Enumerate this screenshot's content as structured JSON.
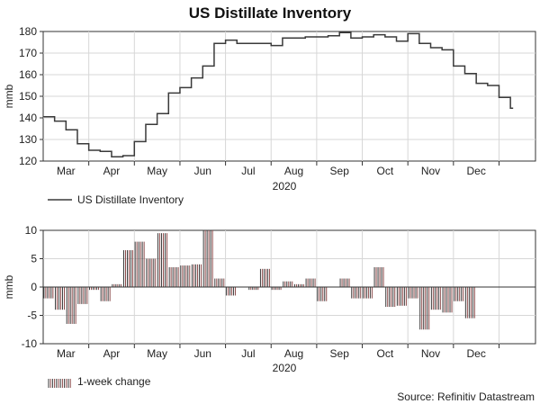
{
  "title": "US Distillate Inventory",
  "source": "Source: Refinitiv Datastream",
  "colors": {
    "line": "#3a3a3a",
    "bar_dark": "#3a3a3a",
    "bar_red": "#8c4a4a",
    "grid": "#d7d7d7",
    "axis": "#333333"
  },
  "chart_data": [
    {
      "type": "line",
      "title": "US Distillate Inventory",
      "ylabel": "mmb",
      "xlabel": "2020",
      "ylim": [
        120,
        180
      ],
      "yticks": [
        120,
        130,
        140,
        150,
        160,
        170,
        180
      ],
      "xlim": [
        0,
        10.8
      ],
      "months": [
        "Mar",
        "Apr",
        "May",
        "Jun",
        "Jul",
        "Aug",
        "Sep",
        "Oct",
        "Nov",
        "Dec"
      ],
      "year_label": "2020",
      "legend": "US Distillate Inventory",
      "series": [
        {
          "name": "US Distillate Inventory",
          "x": [
            0.0,
            0.25,
            0.5,
            0.75,
            1.0,
            1.25,
            1.5,
            1.75,
            2.0,
            2.25,
            2.5,
            2.75,
            3.0,
            3.25,
            3.5,
            3.75,
            4.0,
            4.25,
            4.5,
            4.75,
            5.0,
            5.25,
            5.5,
            5.75,
            6.0,
            6.25,
            6.5,
            6.75,
            7.0,
            7.25,
            7.5,
            7.75,
            8.0,
            8.25,
            8.5,
            8.75,
            9.0,
            9.25,
            9.5,
            9.75,
            10.0,
            10.25
          ],
          "values": [
            140.5,
            138.5,
            134.5,
            128,
            125,
            124.5,
            122,
            122.5,
            129,
            137,
            142,
            151.5,
            154,
            158.5,
            164,
            174.5,
            176,
            174.5,
            174.5,
            174.5,
            173.5,
            177,
            177,
            177.5,
            177.5,
            178,
            179.5,
            177,
            177.5,
            178.5,
            177.5,
            175.5,
            179,
            174.5,
            172.5,
            171.5,
            164,
            160.5,
            156,
            155,
            149.5,
            144.5
          ]
        }
      ]
    },
    {
      "type": "bar",
      "ylabel": "mmb",
      "xlabel": "2020",
      "ylim": [
        -10,
        10
      ],
      "yticks": [
        -10,
        -5,
        0,
        5,
        10
      ],
      "xlim": [
        0,
        10.8
      ],
      "months": [
        "Mar",
        "Apr",
        "May",
        "Jun",
        "Jul",
        "Aug",
        "Sep",
        "Oct",
        "Nov",
        "Dec"
      ],
      "year_label": "2020",
      "legend": "1-week change",
      "bar_width": 0.24,
      "series": [
        {
          "name": "1-week change",
          "x": [
            0.125,
            0.375,
            0.625,
            0.875,
            1.125,
            1.375,
            1.625,
            1.875,
            2.125,
            2.375,
            2.625,
            2.875,
            3.125,
            3.375,
            3.625,
            3.875,
            4.125,
            4.375,
            4.625,
            4.875,
            5.125,
            5.375,
            5.625,
            5.875,
            6.125,
            6.375,
            6.625,
            6.875,
            7.125,
            7.375,
            7.625,
            7.875,
            8.125,
            8.375,
            8.625,
            8.875,
            9.125,
            9.375,
            9.625,
            9.875,
            10.125
          ],
          "values": [
            -2,
            -4,
            -6.5,
            -3,
            -0.5,
            -2.5,
            0.5,
            6.5,
            8,
            5,
            9.5,
            3.5,
            3.8,
            4,
            10,
            1.5,
            -1.5,
            0,
            -0.5,
            3.2,
            -0.5,
            1,
            0.5,
            1.5,
            -2.5,
            0,
            1.5,
            -2,
            -2,
            3.5,
            -3.5,
            -3.3,
            -2,
            -7.5,
            -4,
            -4.5,
            -2.5,
            -5.5,
            0,
            0,
            0
          ]
        }
      ]
    }
  ]
}
